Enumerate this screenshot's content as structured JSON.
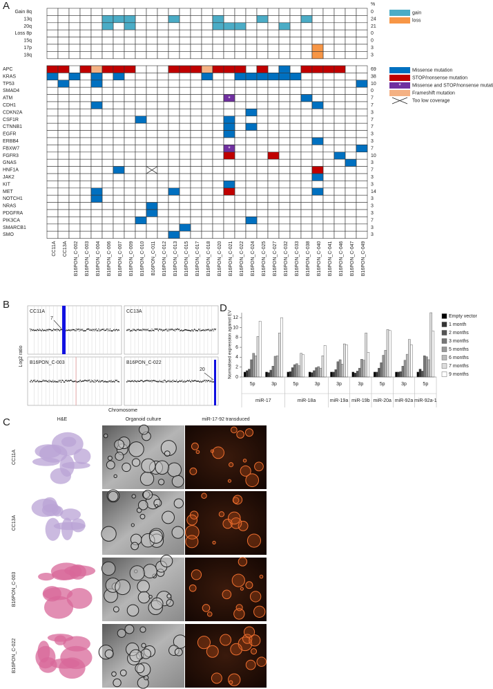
{
  "panel_labels": [
    "A",
    "B",
    "C",
    "D"
  ],
  "oncoprint": {
    "percent_header": "%",
    "samples": [
      "CC11A",
      "CC13A",
      "B16PON_C-002",
      "B16PON_C-003",
      "B16PON_C-004",
      "B16PON_C-006",
      "B16PON_C-007",
      "B16PON_C-009",
      "B16PON_C-010",
      "B16PON_C-011",
      "B16PON_C-012",
      "B16PON_C-013",
      "B16PON_C-015",
      "B16PON_C-017",
      "B16PON_C-018",
      "B16PON_C-020",
      "B16PON_C-021",
      "B16PON_C-022",
      "B16PON_C-024",
      "B16PON_C-025",
      "B16PON_C-027",
      "B16PON_C-032",
      "B16PON_C-033",
      "B16PON_C-038",
      "B16PON_C-040",
      "B16PON_C-041",
      "B16PON_C-046",
      "B16PON_C-047",
      "B16PON_C-049"
    ],
    "cnv_legend": [
      {
        "name": "gain",
        "color": "#4bacc6"
      },
      {
        "name": "loss",
        "color": "#f79646"
      }
    ],
    "cnv_rows": [
      {
        "label": "Gain 8q",
        "percent": 0,
        "cells": []
      },
      {
        "label": "13q",
        "percent": 24,
        "cells": [
          [
            "B16PON_C-006",
            "gain"
          ],
          [
            "B16PON_C-007",
            "gain"
          ],
          [
            "B16PON_C-009",
            "gain"
          ],
          [
            "B16PON_C-013",
            "gain"
          ],
          [
            "B16PON_C-020",
            "gain"
          ],
          [
            "B16PON_C-025",
            "gain"
          ],
          [
            "B16PON_C-038",
            "gain"
          ]
        ]
      },
      {
        "label": "20q",
        "percent": 21,
        "cells": [
          [
            "B16PON_C-006",
            "gain"
          ],
          [
            "B16PON_C-009",
            "gain"
          ],
          [
            "B16PON_C-020",
            "gain"
          ],
          [
            "B16PON_C-021",
            "gain"
          ],
          [
            "B16PON_C-022",
            "gain"
          ],
          [
            "B16PON_C-032",
            "gain"
          ]
        ]
      },
      {
        "label": "Loss 8p",
        "percent": 0,
        "cells": []
      },
      {
        "label": "15q",
        "percent": 0,
        "cells": []
      },
      {
        "label": "17p",
        "percent": 3,
        "cells": [
          [
            "B16PON_C-040",
            "loss"
          ]
        ]
      },
      {
        "label": "18q",
        "percent": 3,
        "cells": [
          [
            "B16PON_C-040",
            "loss"
          ]
        ]
      }
    ],
    "mutation_legend": [
      {
        "name": "Missense mutation",
        "color": "#0070c0"
      },
      {
        "name": "STOP/nonsense mutation",
        "color": "#c00000"
      },
      {
        "name": "Missense and STOP/nonsense mutation",
        "color": "#7030a0",
        "marker": "*"
      },
      {
        "name": "Frameshift mutation",
        "color": "#f4b183"
      },
      {
        "name": "Too low coverage"
      }
    ],
    "mutation_rows": [
      {
        "label": "APC",
        "percent": 69,
        "cells": [
          [
            "CC11A",
            "STOP/nonsense mutation"
          ],
          [
            "CC13A",
            "STOP/nonsense mutation"
          ],
          [
            "B16PON_C-003",
            "STOP/nonsense mutation"
          ],
          [
            "B16PON_C-004",
            "Frameshift mutation"
          ],
          [
            "B16PON_C-006",
            "STOP/nonsense mutation"
          ],
          [
            "B16PON_C-007",
            "STOP/nonsense mutation"
          ],
          [
            "B16PON_C-009",
            "STOP/nonsense mutation"
          ],
          [
            "B16PON_C-013",
            "STOP/nonsense mutation"
          ],
          [
            "B16PON_C-015",
            "STOP/nonsense mutation"
          ],
          [
            "B16PON_C-017",
            "STOP/nonsense mutation"
          ],
          [
            "B16PON_C-018",
            "Frameshift mutation"
          ],
          [
            "B16PON_C-020",
            "STOP/nonsense mutation"
          ],
          [
            "B16PON_C-021",
            "STOP/nonsense mutation"
          ],
          [
            "B16PON_C-022",
            "STOP/nonsense mutation"
          ],
          [
            "B16PON_C-025",
            "STOP/nonsense mutation"
          ],
          [
            "B16PON_C-032",
            "Missense mutation"
          ],
          [
            "B16PON_C-038",
            "STOP/nonsense mutation"
          ],
          [
            "B16PON_C-040",
            "STOP/nonsense mutation"
          ],
          [
            "B16PON_C-041",
            "STOP/nonsense mutation"
          ],
          [
            "B16PON_C-046",
            "STOP/nonsense mutation"
          ]
        ]
      },
      {
        "label": "KRAS",
        "percent": 38,
        "cells": [
          [
            "CC11A",
            "Missense mutation"
          ],
          [
            "B16PON_C-002",
            "Missense mutation"
          ],
          [
            "B16PON_C-004",
            "Missense mutation"
          ],
          [
            "B16PON_C-007",
            "Missense mutation"
          ],
          [
            "B16PON_C-018",
            "Missense mutation"
          ],
          [
            "B16PON_C-022",
            "Missense mutation"
          ],
          [
            "B16PON_C-024",
            "Missense mutation"
          ],
          [
            "B16PON_C-025",
            "Missense mutation"
          ],
          [
            "B16PON_C-027",
            "Missense mutation"
          ],
          [
            "B16PON_C-032",
            "Missense mutation"
          ],
          [
            "B16PON_C-033",
            "Missense mutation"
          ]
        ]
      },
      {
        "label": "TP53",
        "percent": 10,
        "cells": [
          [
            "CC13A",
            "Missense mutation"
          ],
          [
            "B16PON_C-004",
            "Missense mutation"
          ],
          [
            "B16PON_C-049",
            "Missense mutation"
          ]
        ]
      },
      {
        "label": "SMAD4",
        "percent": 0,
        "cells": []
      },
      {
        "label": "ATM",
        "percent": 7,
        "cells": [
          [
            "B16PON_C-021",
            "Missense and STOP/nonsense mutation"
          ],
          [
            "B16PON_C-038",
            "Missense mutation"
          ]
        ]
      },
      {
        "label": "CDH1",
        "percent": 7,
        "cells": [
          [
            "B16PON_C-004",
            "Missense mutation"
          ],
          [
            "B16PON_C-040",
            "Missense mutation"
          ]
        ]
      },
      {
        "label": "CDKN2A",
        "percent": 3,
        "cells": [
          [
            "B16PON_C-024",
            "Missense mutation"
          ]
        ]
      },
      {
        "label": "CSF1R",
        "percent": 7,
        "cells": [
          [
            "B16PON_C-010",
            "Missense mutation"
          ],
          [
            "B16PON_C-021",
            "Missense mutation"
          ]
        ]
      },
      {
        "label": "CTNNB1",
        "percent": 7,
        "cells": [
          [
            "B16PON_C-021",
            "Missense mutation"
          ],
          [
            "B16PON_C-024",
            "Missense mutation"
          ]
        ]
      },
      {
        "label": "EGFR",
        "percent": 3,
        "cells": [
          [
            "B16PON_C-021",
            "Missense mutation"
          ]
        ]
      },
      {
        "label": "ERBB4",
        "percent": 3,
        "cells": [
          [
            "B16PON_C-040",
            "Missense mutation"
          ]
        ]
      },
      {
        "label": "FBXW7",
        "percent": 7,
        "cells": [
          [
            "B16PON_C-021",
            "Missense and STOP/nonsense mutation"
          ],
          [
            "B16PON_C-049",
            "Missense mutation"
          ]
        ]
      },
      {
        "label": "FGFR3",
        "percent": 10,
        "cells": [
          [
            "B16PON_C-021",
            "STOP/nonsense mutation"
          ],
          [
            "B16PON_C-027",
            "STOP/nonsense mutation"
          ],
          [
            "B16PON_C-046",
            "Missense mutation"
          ]
        ]
      },
      {
        "label": "GNAS",
        "percent": 3,
        "cells": [
          [
            "B16PON_C-047",
            "Missense mutation"
          ]
        ]
      },
      {
        "label": "HNF1A",
        "percent": 7,
        "cells": [
          [
            "B16PON_C-007",
            "Missense mutation"
          ],
          [
            "B16PON_C-011",
            "Too low coverage"
          ],
          [
            "B16PON_C-040",
            "STOP/nonsense mutation"
          ]
        ]
      },
      {
        "label": "JAK2",
        "percent": 3,
        "cells": [
          [
            "B16PON_C-040",
            "Missense mutation"
          ]
        ]
      },
      {
        "label": "KIT",
        "percent": 3,
        "cells": [
          [
            "B16PON_C-021",
            "Missense mutation"
          ]
        ]
      },
      {
        "label": "MET",
        "percent": 14,
        "cells": [
          [
            "B16PON_C-004",
            "Missense mutation"
          ],
          [
            "B16PON_C-013",
            "Missense mutation"
          ],
          [
            "B16PON_C-021",
            "STOP/nonsense mutation"
          ],
          [
            "B16PON_C-040",
            "Missense mutation"
          ]
        ]
      },
      {
        "label": "NOTCH1",
        "percent": 3,
        "cells": [
          [
            "B16PON_C-004",
            "Missense mutation"
          ]
        ]
      },
      {
        "label": "NRAS",
        "percent": 3,
        "cells": [
          [
            "B16PON_C-011",
            "Missense mutation"
          ]
        ]
      },
      {
        "label": "PDGFRA",
        "percent": 3,
        "cells": [
          [
            "B16PON_C-011",
            "Missense mutation"
          ]
        ]
      },
      {
        "label": "PIK3CA",
        "percent": 7,
        "cells": [
          [
            "B16PON_C-010",
            "Missense mutation"
          ],
          [
            "B16PON_C-024",
            "Missense mutation"
          ]
        ]
      },
      {
        "label": "SMARCB1",
        "percent": 3,
        "cells": [
          [
            "B16PON_C-015",
            "Missense mutation"
          ]
        ]
      },
      {
        "label": "SMO",
        "percent": 3,
        "cells": [
          [
            "B16PON_C-013",
            "Missense mutation"
          ]
        ]
      }
    ]
  },
  "copy_number": {
    "y_label": "Log2 ratio",
    "x_label": "Chromosome",
    "plots": [
      {
        "label": "CC11A",
        "annotation": "7"
      },
      {
        "label": "CC13A"
      },
      {
        "label": "B16PON_C-003"
      },
      {
        "label": "B16PON_C-022",
        "annotation": "20"
      }
    ]
  },
  "organoids": {
    "column_headers": [
      "H&E",
      "Organoid culture",
      "miR-17-92 transduced"
    ],
    "row_labels": [
      "CC11A",
      "CC13A",
      "B16PON_C-003",
      "B16PON_C-022"
    ]
  },
  "chart_data": {
    "type": "bar",
    "y_label": "Normalised expression against EV",
    "groups": [
      {
        "name": "miR-17",
        "categories": [
          "5p",
          "3p"
        ]
      },
      {
        "name": "miR-18a",
        "categories": [
          "5p",
          "3p"
        ]
      },
      {
        "name": "miR-19a",
        "categories": [
          "3p"
        ]
      },
      {
        "name": "miR-19b",
        "categories": [
          "3p"
        ]
      },
      {
        "name": "miR-20a",
        "categories": [
          "5p"
        ]
      },
      {
        "name": "miR-92a",
        "categories": [
          "3p"
        ]
      },
      {
        "name": "miR-92a-1",
        "categories": [
          "5p"
        ]
      }
    ],
    "series": [
      {
        "name": "Empty vector",
        "color": "#000000",
        "values": [
          1,
          1,
          1,
          1,
          1,
          1,
          1,
          1,
          1
        ]
      },
      {
        "name": "1 month",
        "color": "#333333",
        "values": [
          1.3,
          0.9,
          1.1,
          0.9,
          1.0,
          0.8,
          1.0,
          1.0,
          1.6
        ]
      },
      {
        "name": "2 months",
        "color": "#555555",
        "values": [
          1.6,
          1.4,
          1.9,
          1.3,
          1.5,
          1.2,
          1.8,
          1.1,
          1.2
        ]
      },
      {
        "name": "3 months",
        "color": "#777777",
        "values": [
          3.5,
          2.2,
          2.5,
          1.9,
          3.1,
          1.8,
          2.9,
          2.2,
          4.3
        ]
      },
      {
        "name": "5 months",
        "color": "#999999",
        "values": [
          4.8,
          4.2,
          2.7,
          2.1,
          3.5,
          3.6,
          4.4,
          3.4,
          4.1
        ]
      },
      {
        "name": "6 months",
        "color": "#bbbbbb",
        "values": [
          4.3,
          4.3,
          2.3,
          1.8,
          2.6,
          3.4,
          5.4,
          4.6,
          3.5
        ]
      },
      {
        "name": "7 months",
        "color": "#dddddd",
        "values": [
          8.2,
          8.9,
          4.8,
          4.3,
          6.7,
          8.9,
          9.6,
          7.6,
          13
        ]
      },
      {
        "name": "9 months",
        "color": "#ffffff",
        "values": [
          11.3,
          12.0,
          4.5,
          6.4,
          6.5,
          5.0,
          9.4,
          6.5,
          9.3
        ]
      }
    ],
    "ylim": [
      0,
      13
    ],
    "yticks": [
      0,
      2,
      4,
      6,
      8,
      10,
      12
    ],
    "grid": false,
    "legend": "right"
  }
}
